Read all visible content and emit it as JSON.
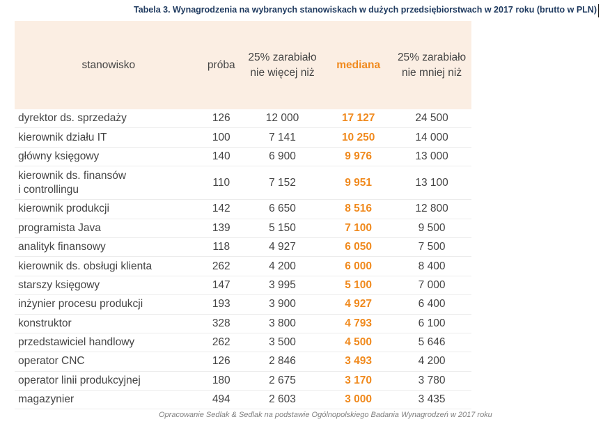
{
  "title": "Tabela 3. Wynagrodzenia na wybranych stanowiskach w dużych przedsiębiorstwach w 2017 roku (brutto w PLN)",
  "header": {
    "position": "stanowisko",
    "sample": "próba",
    "q25_line1": "25% zarabiało",
    "q25_line2": "nie więcej niż",
    "median": "mediana",
    "q75_line1": "25% zarabiało",
    "q75_line2": "nie mniej niż"
  },
  "rows": [
    {
      "position": "dyrektor ds. sprzedaży",
      "sample": "126",
      "q25": "12 000",
      "median": "17 127",
      "q75": "24 500"
    },
    {
      "position": "kierownik działu IT",
      "sample": "100",
      "q25": "7 141",
      "median": "10 250",
      "q75": "14 000"
    },
    {
      "position": "główny księgowy",
      "sample": "140",
      "q25": "6 900",
      "median": "9 976",
      "q75": "13 000"
    },
    {
      "position_line1": "kierownik ds. finansów",
      "position_line2": "i controllingu",
      "sample": "110",
      "q25": "7 152",
      "median": "9 951",
      "q75": "13 100"
    },
    {
      "position": "kierownik produkcji",
      "sample": "142",
      "q25": "6 650",
      "median": "8 516",
      "q75": "12 800"
    },
    {
      "position": "programista Java",
      "sample": "139",
      "q25": "5 150",
      "median": "7 100",
      "q75": "9 500"
    },
    {
      "position": "analityk finansowy",
      "sample": "118",
      "q25": "4 927",
      "median": "6 050",
      "q75": "7 500"
    },
    {
      "position": "kierownik ds. obsługi klienta",
      "sample": "262",
      "q25": "4 200",
      "median": "6 000",
      "q75": "8 400"
    },
    {
      "position": "starszy księgowy",
      "sample": "147",
      "q25": "3 995",
      "median": "5 100",
      "q75": "7 000"
    },
    {
      "position": "inżynier procesu produkcji",
      "sample": "193",
      "q25": "3 900",
      "median": "4 927",
      "q75": "6 400"
    },
    {
      "position": "konstruktor",
      "sample": "328",
      "q25": "3 800",
      "median": "4 793",
      "q75": "6 100"
    },
    {
      "position": "przedstawiciel handlowy",
      "sample": "262",
      "q25": "3 500",
      "median": "4 500",
      "q75": "5 646"
    },
    {
      "position": "operator CNC",
      "sample": "126",
      "q25": "2 846",
      "median": "3 493",
      "q75": "4 200"
    },
    {
      "position": "operator linii produkcyjnej",
      "sample": "180",
      "q25": "2 675",
      "median": "3 170",
      "q75": "3 780"
    },
    {
      "position": "magazynier",
      "sample": "494",
      "q25": "2 603",
      "median": "3 000",
      "q75": "3 435"
    }
  ],
  "source": "Opracowanie Sedlak & Sedlak na podstawie Ogólnopolskiego Badania Wynagrodzeń w 2017 roku",
  "colors": {
    "median": "#f08a1e",
    "header_bg": "#fbeee3",
    "title": "#1f3a5f"
  }
}
